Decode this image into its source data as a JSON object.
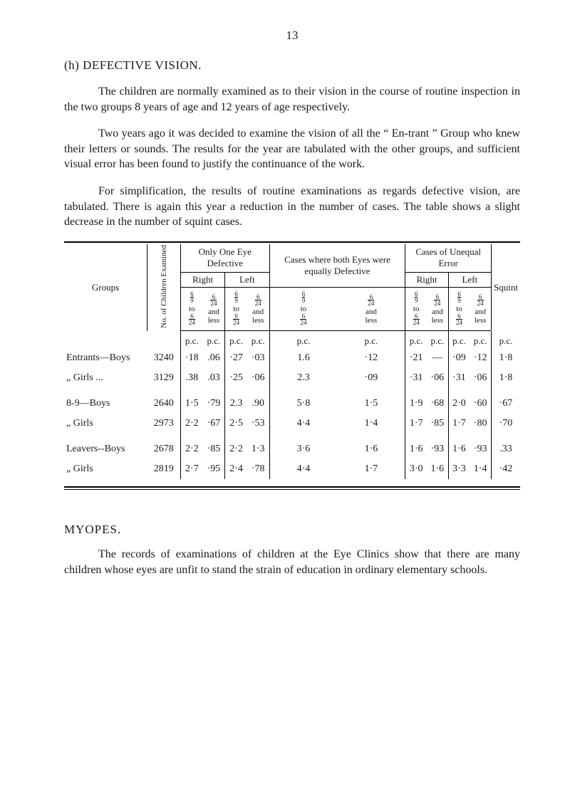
{
  "page_number": "13",
  "section_label": "(h) DEFECTIVE   VISION.",
  "para1": "The children are normally examined as to their vision in the course of routine inspection in the two groups 8 years of age and 12 years of age respectively.",
  "para2": "Two years ago it was decided to examine the vision of all the “ En-trant ” Group who knew their letters or sounds. The results for the year are tabulated with the other groups, and sufficient visual error has been found to justify the continuance of the work.",
  "para3": "For simplification, the results of routine examinations as regards defective vision, are tabulated. There is again this year a reduction in the number of cases. The table shows a slight decrease in the number of squint cases.",
  "table": {
    "col_groups": "Groups",
    "col_no": "No. of Children Examined",
    "top_only": "Only One Eye Defective",
    "top_cases": "Cases where both Eyes were equally Defective",
    "top_unequal": "Cases of Unequal Error",
    "right": "Right",
    "left": "Left",
    "squint": "Squint",
    "frac_a_num": "6",
    "frac_a_den": "9",
    "frac_b_num": "6",
    "frac_b_den": "24",
    "to": "to",
    "and": "and",
    "less": "less",
    "pc": "p.c.",
    "rows": [
      {
        "label": "Entrants—Boys",
        "n": "3240",
        "c": [
          "·18",
          ".06",
          "·27",
          "·03",
          "1.6",
          "·12",
          "·21",
          "—",
          "·09",
          "·12",
          "1·8"
        ]
      },
      {
        "label": "„          Girls  ...",
        "n": "3129",
        "c": [
          ".38",
          ".03",
          "·25",
          "·06",
          "2.3",
          "·09",
          "·31",
          "·06",
          "·31",
          "·06",
          "1·8"
        ]
      },
      {
        "label": "8-9—Boys",
        "n": "2640",
        "c": [
          "1·5",
          "·79",
          "2.3",
          ".90",
          "5·8",
          "1·5",
          "1·9",
          "·68",
          "2·0",
          "·60",
          "·67"
        ]
      },
      {
        "label": "„     Girls",
        "n": "2973",
        "c": [
          "2·2",
          "·67",
          "2·5",
          "·53",
          "4·4",
          "1·4",
          "1·7",
          "·85",
          "1·7",
          "·80",
          "·70"
        ]
      },
      {
        "label": "Leavers--Boys",
        "n": "2678",
        "c": [
          "2·2",
          "·85",
          "2·2",
          "1·3",
          "3·6",
          "1·6",
          "1·6",
          "·93",
          "1·6",
          "·93",
          ".33"
        ]
      },
      {
        "label": "„          Girls",
        "n": "2819",
        "c": [
          "2·7",
          "·95",
          "2·4",
          "·78",
          "4·4",
          "1·7",
          "3·0",
          "1·6",
          "3·3",
          "1·4",
          "·42"
        ]
      }
    ]
  },
  "myopes_head": "MYOPES.",
  "para4": "The records of examinations of children at the Eye Clinics show that there are many children whose eyes are unfit to stand the strain of education in ordinary elementary schools."
}
